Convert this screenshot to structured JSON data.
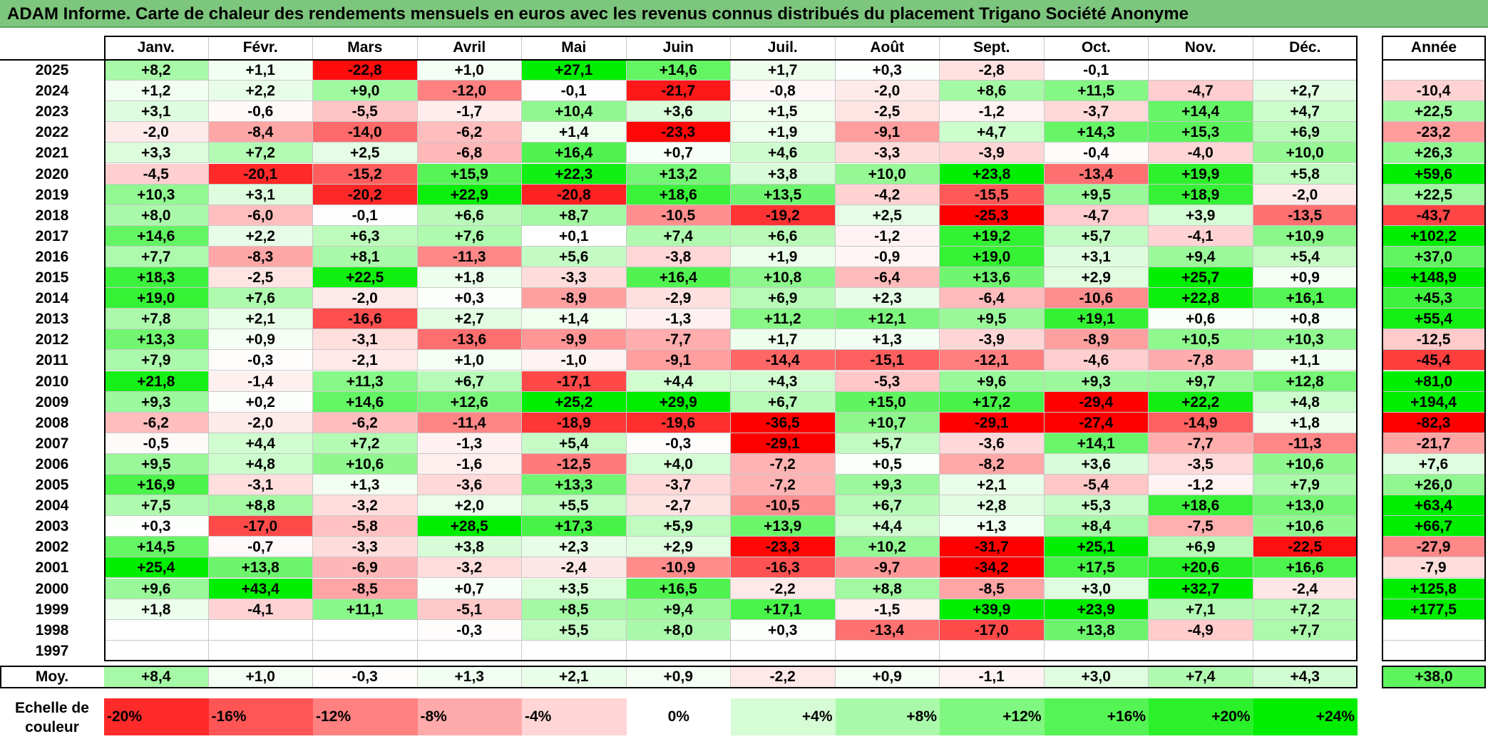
{
  "title": "ADAM Informe. Carte de chaleur des rendements mensuels en euros avec les revenus connus distribués du placement Trigano Société Anonyme",
  "colors": {
    "title_bg": "#7dc67d",
    "neg_max": "#ff0000",
    "pos_max": "#00ee00",
    "neutral": "#ffffff"
  },
  "chart_data": {
    "type": "heatmap",
    "columns": [
      "Janv.",
      "Févr.",
      "Mars",
      "Avril",
      "Mai",
      "Juin",
      "Juil.",
      "Août",
      "Sept.",
      "Oct.",
      "Nov.",
      "Déc."
    ],
    "year_header": "Année",
    "rows": [
      {
        "year": "2025",
        "values": [
          "+8,2",
          "+1,1",
          "-22,8",
          "+1,0",
          "+27,1",
          "+14,6",
          "+1,7",
          "+0,3",
          "-2,8",
          "-0,1",
          "",
          ""
        ],
        "annual": ""
      },
      {
        "year": "2024",
        "values": [
          "+1,2",
          "+2,2",
          "+9,0",
          "-12,0",
          "-0,1",
          "-21,7",
          "-0,8",
          "-2,0",
          "+8,6",
          "+11,5",
          "-4,7",
          "+2,7"
        ],
        "annual": "-10,4"
      },
      {
        "year": "2023",
        "values": [
          "+3,1",
          "-0,6",
          "-5,5",
          "-1,7",
          "+10,4",
          "+3,6",
          "+1,5",
          "-2,5",
          "-1,2",
          "-3,7",
          "+14,4",
          "+4,7"
        ],
        "annual": "+22,5"
      },
      {
        "year": "2022",
        "values": [
          "-2,0",
          "-8,4",
          "-14,0",
          "-6,2",
          "+1,4",
          "-23,3",
          "+1,9",
          "-9,1",
          "+4,7",
          "+14,3",
          "+15,3",
          "+6,9"
        ],
        "annual": "-23,2"
      },
      {
        "year": "2021",
        "values": [
          "+3,3",
          "+7,2",
          "+2,5",
          "-6,8",
          "+16,4",
          "+0,7",
          "+4,6",
          "-3,3",
          "-3,9",
          "-0,4",
          "-4,0",
          "+10,0"
        ],
        "annual": "+26,3"
      },
      {
        "year": "2020",
        "values": [
          "-4,5",
          "-20,1",
          "-15,2",
          "+15,9",
          "+22,3",
          "+13,2",
          "+3,8",
          "+10,0",
          "+23,8",
          "-13,4",
          "+19,9",
          "+5,8"
        ],
        "annual": "+59,6"
      },
      {
        "year": "2019",
        "values": [
          "+10,3",
          "+3,1",
          "-20,2",
          "+22,9",
          "-20,8",
          "+18,6",
          "+13,5",
          "-4,2",
          "-15,5",
          "+9,5",
          "+18,9",
          "-2,0"
        ],
        "annual": "+22,5"
      },
      {
        "year": "2018",
        "values": [
          "+8,0",
          "-6,0",
          "-0,1",
          "+6,6",
          "+8,7",
          "-10,5",
          "-19,2",
          "+2,5",
          "-25,3",
          "-4,7",
          "+3,9",
          "-13,5"
        ],
        "annual": "-43,7"
      },
      {
        "year": "2017",
        "values": [
          "+14,6",
          "+2,2",
          "+6,3",
          "+7,6",
          "+0,1",
          "+7,4",
          "+6,6",
          "-1,2",
          "+19,2",
          "+5,7",
          "-4,1",
          "+10,9"
        ],
        "annual": "+102,2"
      },
      {
        "year": "2016",
        "values": [
          "+7,7",
          "-8,3",
          "+8,1",
          "-11,3",
          "+5,6",
          "-3,8",
          "+1,9",
          "-0,9",
          "+19,0",
          "+3,1",
          "+9,4",
          "+5,4"
        ],
        "annual": "+37,0"
      },
      {
        "year": "2015",
        "values": [
          "+18,3",
          "-2,5",
          "+22,5",
          "+1,8",
          "-3,3",
          "+16,4",
          "+10,8",
          "-6,4",
          "+13,6",
          "+2,9",
          "+25,7",
          "+0,9"
        ],
        "annual": "+148,9"
      },
      {
        "year": "2014",
        "values": [
          "+19,0",
          "+7,6",
          "-2,0",
          "+0,3",
          "-8,9",
          "-2,9",
          "+6,9",
          "+2,3",
          "-6,4",
          "-10,6",
          "+22,8",
          "+16,1"
        ],
        "annual": "+45,3"
      },
      {
        "year": "2013",
        "values": [
          "+7,8",
          "+2,1",
          "-16,6",
          "+2,7",
          "+1,4",
          "-1,3",
          "+11,2",
          "+12,1",
          "+9,5",
          "+19,1",
          "+0,6",
          "+0,8"
        ],
        "annual": "+55,4"
      },
      {
        "year": "2012",
        "values": [
          "+13,3",
          "+0,9",
          "-3,1",
          "-13,6",
          "-9,9",
          "-7,7",
          "+1,7",
          "+1,3",
          "-3,9",
          "-8,9",
          "+10,5",
          "+10,3"
        ],
        "annual": "-12,5"
      },
      {
        "year": "2011",
        "values": [
          "+7,9",
          "-0,3",
          "-2,1",
          "+1,0",
          "-1,0",
          "-9,1",
          "-14,4",
          "-15,1",
          "-12,1",
          "-4,6",
          "-7,8",
          "+1,1"
        ],
        "annual": "-45,4"
      },
      {
        "year": "2010",
        "values": [
          "+21,8",
          "-1,4",
          "+11,3",
          "+6,7",
          "-17,1",
          "+4,4",
          "+4,3",
          "-5,3",
          "+9,6",
          "+9,3",
          "+9,7",
          "+12,8"
        ],
        "annual": "+81,0"
      },
      {
        "year": "2009",
        "values": [
          "+9,3",
          "+0,2",
          "+14,6",
          "+12,6",
          "+25,2",
          "+29,9",
          "+6,7",
          "+15,0",
          "+17,2",
          "-29,4",
          "+22,2",
          "+4,8"
        ],
        "annual": "+194,4"
      },
      {
        "year": "2008",
        "values": [
          "-6,2",
          "-2,0",
          "-6,2",
          "-11,4",
          "-18,9",
          "-19,6",
          "-36,5",
          "+10,7",
          "-29,1",
          "-27,4",
          "-14,9",
          "+1,8"
        ],
        "annual": "-82,3"
      },
      {
        "year": "2007",
        "values": [
          "-0,5",
          "+4,4",
          "+7,2",
          "-1,3",
          "+5,4",
          "-0,3",
          "-29,1",
          "+5,7",
          "-3,6",
          "+14,1",
          "-7,7",
          "-11,3"
        ],
        "annual": "-21,7"
      },
      {
        "year": "2006",
        "values": [
          "+9,5",
          "+4,8",
          "+10,6",
          "-1,6",
          "-12,5",
          "+4,0",
          "-7,2",
          "+0,5",
          "-8,2",
          "+3,6",
          "-3,5",
          "+10,6"
        ],
        "annual": "+7,6"
      },
      {
        "year": "2005",
        "values": [
          "+16,9",
          "-3,1",
          "+1,3",
          "-3,6",
          "+13,3",
          "-3,7",
          "-7,2",
          "+9,3",
          "+2,1",
          "-5,4",
          "-1,2",
          "+7,9"
        ],
        "annual": "+26,0"
      },
      {
        "year": "2004",
        "values": [
          "+7,5",
          "+8,8",
          "-3,2",
          "+2,0",
          "+5,5",
          "-2,7",
          "-10,5",
          "+6,7",
          "+2,8",
          "+5,3",
          "+18,6",
          "+13,0"
        ],
        "annual": "+63,4"
      },
      {
        "year": "2003",
        "values": [
          "+0,3",
          "-17,0",
          "-5,8",
          "+28,5",
          "+17,3",
          "+5,9",
          "+13,9",
          "+4,4",
          "+1,3",
          "+8,4",
          "-7,5",
          "+10,6"
        ],
        "annual": "+66,7"
      },
      {
        "year": "2002",
        "values": [
          "+14,5",
          "-0,7",
          "-3,3",
          "+3,8",
          "+2,3",
          "+2,9",
          "-23,3",
          "+10,2",
          "-31,7",
          "+25,1",
          "+6,9",
          "-22,5"
        ],
        "annual": "-27,9"
      },
      {
        "year": "2001",
        "values": [
          "+25,4",
          "+13,8",
          "-6,9",
          "-3,2",
          "-2,4",
          "-10,9",
          "-16,3",
          "-9,7",
          "-34,2",
          "+17,5",
          "+20,6",
          "+16,6"
        ],
        "annual": "-7,9"
      },
      {
        "year": "2000",
        "values": [
          "+9,6",
          "+43,4",
          "-8,5",
          "+0,7",
          "+3,5",
          "+16,5",
          "-2,2",
          "+8,8",
          "-8,5",
          "+3,0",
          "+32,7",
          "-2,4"
        ],
        "annual": "+125,8"
      },
      {
        "year": "1999",
        "values": [
          "+1,8",
          "-4,1",
          "+11,1",
          "-5,1",
          "+8,5",
          "+9,4",
          "+17,1",
          "-1,5",
          "+39,9",
          "+23,9",
          "+7,1",
          "+7,2"
        ],
        "annual": "+177,5"
      },
      {
        "year": "1998",
        "values": [
          "",
          "",
          "",
          "-0,3",
          "+5,5",
          "+8,0",
          "+0,3",
          "-13,4",
          "-17,0",
          "+13,8",
          "-4,9",
          "+7,7"
        ],
        "annual": ""
      },
      {
        "year": "1997",
        "values": [
          "",
          "",
          "",
          "",
          "",
          "",
          "",
          "",
          "",
          "",
          "",
          ""
        ],
        "annual": ""
      }
    ],
    "average": {
      "label": "Moy.",
      "values": [
        "+8,4",
        "+1,0",
        "-0,3",
        "+1,3",
        "+2,1",
        "+0,9",
        "-2,2",
        "+0,9",
        "-1,1",
        "+3,0",
        "+7,4",
        "+4,3"
      ],
      "annual": "+38,0"
    },
    "scale": {
      "label_line1": "Echelle de",
      "label_line2": "couleur",
      "stops": [
        {
          "label": "-20%",
          "value": -20
        },
        {
          "label": "-16%",
          "value": -16
        },
        {
          "label": "-12%",
          "value": -12
        },
        {
          "label": "-8%",
          "value": -8
        },
        {
          "label": "-4%",
          "value": -4
        },
        {
          "label": "0%",
          "value": 0
        },
        {
          "label": "+4%",
          "value": 4
        },
        {
          "label": "+8%",
          "value": 8
        },
        {
          "label": "+12%",
          "value": 12
        },
        {
          "label": "+16%",
          "value": 16
        },
        {
          "label": "+20%",
          "value": 20
        },
        {
          "label": "+24%",
          "value": 24
        }
      ]
    }
  }
}
